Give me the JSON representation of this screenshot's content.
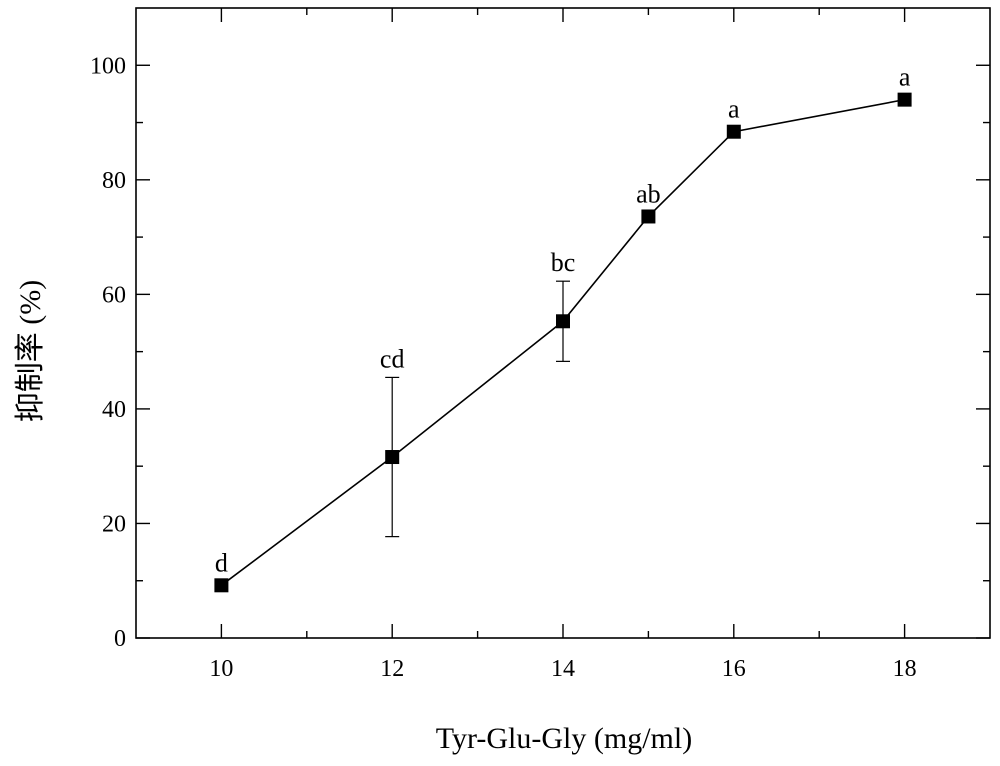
{
  "chart_data": {
    "type": "line",
    "xlabel": "Tyr-Glu-Gly (mg/ml)",
    "ylabel": "抑制率 (%)",
    "xlim": [
      9,
      19
    ],
    "ylim": [
      0,
      110
    ],
    "x_ticks": [
      10,
      12,
      14,
      16,
      18
    ],
    "y_ticks": [
      0,
      20,
      40,
      60,
      80,
      100
    ],
    "grid": false,
    "series": [
      {
        "x": [
          10,
          12,
          14,
          15,
          16,
          18
        ],
        "y": [
          9.2,
          31.6,
          55.3,
          73.6,
          88.4,
          94.0
        ],
        "error": [
          0,
          13.9,
          7.0,
          0,
          0,
          0
        ],
        "labels": [
          "d",
          "cd",
          "bc",
          "ab",
          "a",
          "a"
        ]
      }
    ]
  }
}
